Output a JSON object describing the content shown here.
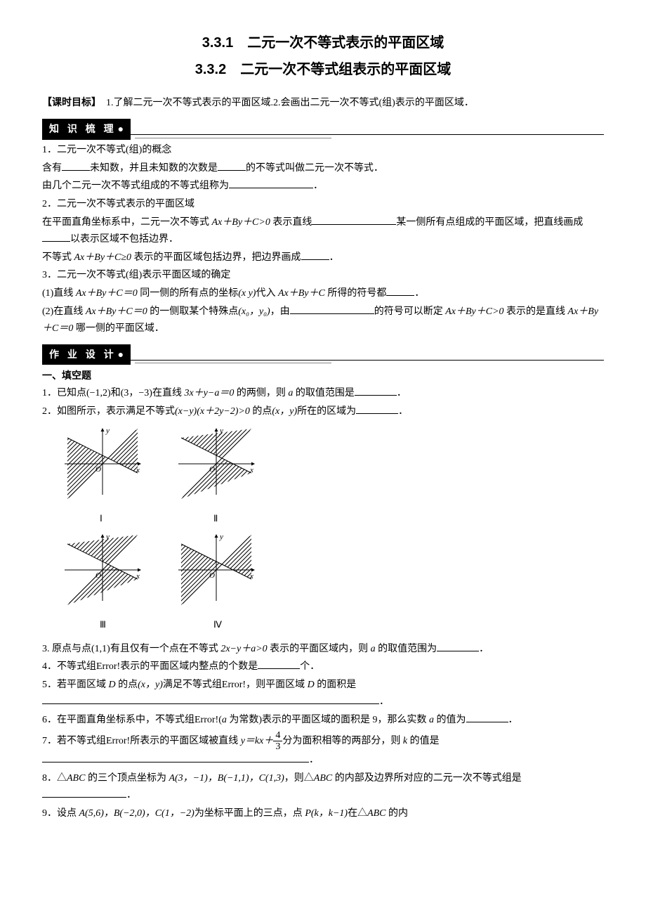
{
  "titles": {
    "t1": "3.3.1　二元一次不等式表示的平面区域",
    "t2": "3.3.2　二元一次不等式组表示的平面区域"
  },
  "objective_label": "【课时目标】",
  "objective_text": "　1.了解二元一次不等式表示的平面区域.2.会画出二元一次不等式(组)表示的平面区域．",
  "sections": {
    "s1": "知 识 梳 理",
    "s2": "作 业 设 计"
  },
  "knowledge": {
    "k1": "1．二元一次不等式(组)的概念",
    "k2a": "含有",
    "k2b": "未知数，并且未知数的次数是",
    "k2c": "的不等式叫做二元一次不等式．",
    "k3a": "由几个二元一次不等式组成的不等式组称为",
    "k3b": "．",
    "k4": "2．二元一次不等式表示的平面区域",
    "k5a": "在平面直角坐标系中，二元一次不等式 ",
    "k5expr": "Ax＋By＋C>0",
    "k5b": " 表示直线",
    "k5c": "某一侧所有点组成的平面区域，把直线画成",
    "k5d": "以表示区域不包括边界．",
    "k6a": "不等式 ",
    "k6expr": "Ax＋By＋C≥0",
    "k6b": " 表示的平面区域包括边界，把边界画成",
    "k6c": "．",
    "k7": "3．二元一次不等式(组)表示平面区域的确定",
    "k8a": "(1)直线 ",
    "k8expr1": "Ax＋By＋C＝0",
    "k8b": " 同一侧的所有点的坐标",
    "k8xy": "(x y)",
    "k8c": "代入 ",
    "k8expr2": "Ax＋By＋C",
    "k8d": " 所得的符号都",
    "k8e": "．",
    "k9a": "(2)在直线 ",
    "k9expr": "Ax＋By＋C＝0",
    "k9b": " 的一侧取某个特殊点",
    "k9pt": "(x₀，y₀)",
    "k9c": "，由",
    "k9d": "的符号可以断定 ",
    "k9expr2": "Ax＋By＋C>0",
    "k9e": " 表示的是直线 ",
    "k9expr3": "Ax＋By＋C＝0",
    "k9f": " 哪一侧的平面区域．"
  },
  "hw_heading": "一、填空题",
  "hw": {
    "q1a": "1．已知点(−1,2)和(3，−3)在直线 ",
    "q1expr": "3x＋y−a＝0",
    "q1b": " 的两侧，则 ",
    "q1var": "a",
    "q1c": " 的取值范围是",
    "q1d": "．",
    "q2a": "2．如图所示，表示满足不等式",
    "q2expr": "(x−y)(x＋2y−2)>0",
    "q2b": " 的点",
    "q2pt": "(x，y)",
    "q2c": "所在的区域为",
    "q2d": "．",
    "q3a": "3. 原点与点(1,1)有且仅有一个点在不等式 ",
    "q3expr": "2x−y＋a>0",
    "q3b": " 表示的平面区域内，则 ",
    "q3var": "a",
    "q3c": " 的取值范围为",
    "q3d": "．",
    "q4a": "4．不等式组Error!表示的平面区域内整点的个数是",
    "q4b": "个．",
    "q5a": "5．若平面区域 ",
    "q5D": "D",
    "q5b": " 的点",
    "q5pt": "(x，y)",
    "q5c": "满足不等式组Error!，则平面区域 ",
    "q5D2": "D",
    "q5d": " 的面积是",
    "q5e": "．",
    "q6a": "6．在平面直角坐标系中，不等式组Error!(",
    "q6var": "a",
    "q6b": " 为常数)表示的平面区域的面积是 9，那么实数 ",
    "q6var2": "a",
    "q6c": " 的值为",
    "q6d": "．",
    "q7a": "7．若不等式组Error!所表示的平面区域被直线 ",
    "q7expr_pre": "y＝kx＋",
    "q7frac_num": "4",
    "q7frac_den": "3",
    "q7b": "分为面积相等的两部分，则 ",
    "q7var": "k",
    "q7c": " 的值是",
    "q7d": "．",
    "q8a": "8．△",
    "q8ABC": "ABC",
    "q8b": " 的三个顶点坐标为 ",
    "q8pts": "A(3，−1)，B(−1,1)，C(1,3)",
    "q8c": "，则△",
    "q8ABC2": "ABC",
    "q8d": " 的内部及边界所对应的二元一次不等式组是",
    "q8e": "．",
    "q9a": "9．设点 ",
    "q9pts": "A(5,6)，B(−2,0)，C(1，−2)",
    "q9b": "为坐标平面上的三点，点 ",
    "q9P": "P(k，k−1)",
    "q9c": "在△",
    "q9ABC": "ABC",
    "q9d": " 的内"
  },
  "figures": {
    "labels": [
      "Ⅰ",
      "Ⅱ",
      "Ⅲ",
      "Ⅳ"
    ],
    "axis_x": "x",
    "axis_y": "y",
    "origin": "O",
    "size": 120,
    "hatch_color": "#000",
    "bg": "#fff"
  }
}
